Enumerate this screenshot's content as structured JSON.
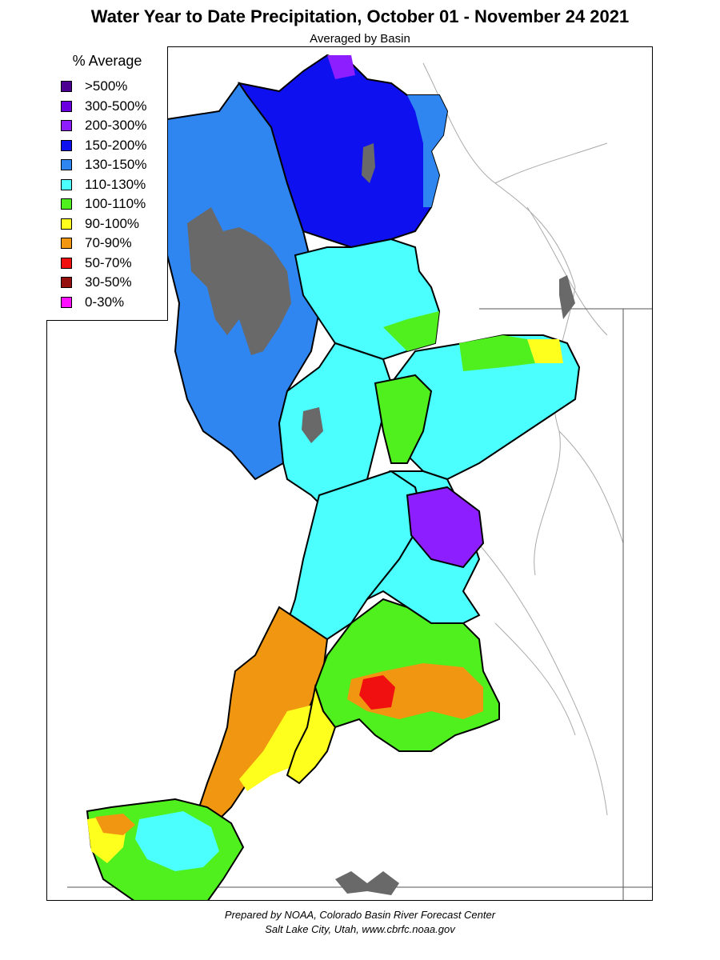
{
  "header": {
    "title": "Water Year to Date Precipitation, October 01  - November 24 2021",
    "subtitle": "Averaged by Basin"
  },
  "legend": {
    "title": "% Average",
    "items": [
      {
        "label": ">500%",
        "color": "#4B0091"
      },
      {
        "label": "300-500%",
        "color": "#6A00E0"
      },
      {
        "label": "200-300%",
        "color": "#8C1EFF"
      },
      {
        "label": "150-200%",
        "color": "#0F10F0"
      },
      {
        "label": "130-150%",
        "color": "#2F86F0"
      },
      {
        "label": "110-130%",
        "color": "#4BFFFF"
      },
      {
        "label": "100-110%",
        "color": "#50F01E"
      },
      {
        "label": "90-100%",
        "color": "#FFFF1E"
      },
      {
        "label": "70-90%",
        "color": "#F09610"
      },
      {
        "label": "50-70%",
        "color": "#F01010"
      },
      {
        "label": "30-50%",
        "color": "#960F0F"
      },
      {
        "label": "0-30%",
        "color": "#FF10FF"
      }
    ]
  },
  "map": {
    "no_data_color": "#696969",
    "boundary_color": "#000000",
    "river_color": "#9a9a9a"
  },
  "footer": {
    "line1": "Prepared by NOAA, Colorado Basin River Forecast Center",
    "line2": "Salt Lake City, Utah, www.cbrfc.noaa.gov"
  }
}
